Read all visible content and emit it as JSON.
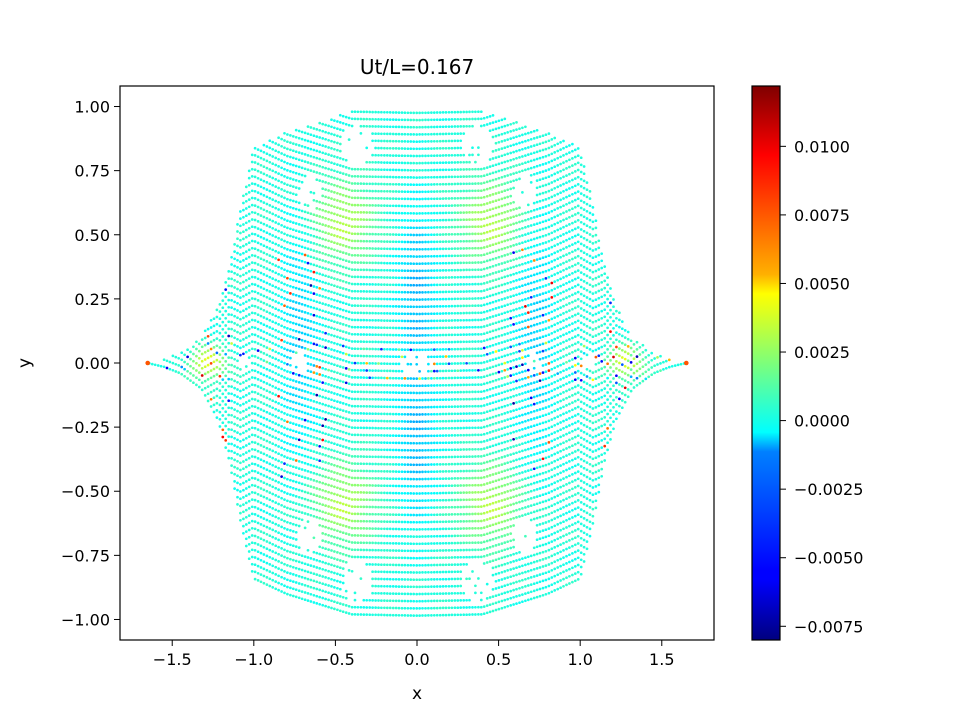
{
  "chart_data": {
    "type": "scatter",
    "title": "Ut/L=0.167",
    "xlabel": "x",
    "ylabel": "y",
    "xlim": [
      -1.82,
      1.82
    ],
    "ylim": [
      -1.08,
      1.08
    ],
    "xticks": [
      -1.5,
      -1.0,
      -0.5,
      0.0,
      0.5,
      1.0,
      1.5
    ],
    "xtick_labels": [
      "−1.5",
      "−1.0",
      "−0.5",
      "0.0",
      "0.5",
      "1.0",
      "1.5"
    ],
    "yticks": [
      1.0,
      0.75,
      0.5,
      0.25,
      0.0,
      -0.25,
      -0.5,
      -0.75,
      -1.0
    ],
    "ytick_labels": [
      "1.00",
      "0.75",
      "0.50",
      "0.25",
      "0.00",
      "−0.25",
      "−0.50",
      "−0.75",
      "−1.00"
    ],
    "grid": false,
    "colormap": "jet",
    "colorbar": {
      "range": [
        -0.008,
        0.0122
      ],
      "ticks": [
        0.01,
        0.0075,
        0.005,
        0.0025,
        0.0,
        -0.0025,
        -0.005,
        -0.0075
      ],
      "tick_labels": [
        "0.0100",
        "0.0075",
        "0.0050",
        "0.0025",
        "0.0000",
        "−0.0025",
        "−0.0050",
        "−0.0075"
      ]
    },
    "region_outline": {
      "upper_right": [
        [
          0.0,
          0.985
        ],
        [
          0.4,
          0.98
        ],
        [
          0.8,
          0.9
        ],
        [
          1.0,
          0.84
        ],
        [
          1.08,
          0.62
        ],
        [
          1.15,
          0.38
        ],
        [
          1.22,
          0.22
        ],
        [
          1.32,
          0.1
        ],
        [
          1.45,
          0.04
        ],
        [
          1.55,
          0.015
        ],
        [
          1.65,
          0.0
        ]
      ]
    },
    "field_features": [
      {
        "x": 0.0,
        "y": 0.3,
        "rx": 0.13,
        "ry": 0.35,
        "value": -0.002
      },
      {
        "x": 0.0,
        "y": -0.3,
        "rx": 0.13,
        "ry": 0.35,
        "value": -0.002
      },
      {
        "x": -0.45,
        "y": 0.55,
        "rx": 0.22,
        "ry": 0.18,
        "value": 0.003
      },
      {
        "x": 0.45,
        "y": 0.55,
        "rx": 0.22,
        "ry": 0.18,
        "value": 0.003
      },
      {
        "x": -0.45,
        "y": -0.55,
        "rx": 0.22,
        "ry": 0.18,
        "value": 0.003
      },
      {
        "x": 0.45,
        "y": -0.55,
        "rx": 0.22,
        "ry": 0.18,
        "value": 0.003
      },
      {
        "x": -0.72,
        "y": 0.1,
        "rx": 0.12,
        "ry": 0.55,
        "value": -0.0015
      },
      {
        "x": 0.72,
        "y": 0.1,
        "rx": 0.12,
        "ry": 0.55,
        "value": -0.0015
      },
      {
        "x": -1.28,
        "y": 0.0,
        "rx": 0.12,
        "ry": 0.07,
        "value": 0.004
      },
      {
        "x": 1.28,
        "y": 0.0,
        "rx": 0.12,
        "ry": 0.07,
        "value": 0.004
      }
    ],
    "gaps": [
      {
        "x": -0.37,
        "y": 0.85,
        "rx": 0.1,
        "ry": 0.08
      },
      {
        "x": 0.37,
        "y": 0.85,
        "rx": 0.1,
        "ry": 0.08
      },
      {
        "x": -0.37,
        "y": -0.85,
        "rx": 0.1,
        "ry": 0.08
      },
      {
        "x": 0.37,
        "y": -0.85,
        "rx": 0.1,
        "ry": 0.08
      },
      {
        "x": -0.66,
        "y": 0.67,
        "rx": 0.07,
        "ry": 0.07
      },
      {
        "x": 0.66,
        "y": 0.67,
        "rx": 0.07,
        "ry": 0.07
      },
      {
        "x": -0.66,
        "y": -0.67,
        "rx": 0.07,
        "ry": 0.07
      },
      {
        "x": 0.66,
        "y": -0.67,
        "rx": 0.07,
        "ry": 0.07
      },
      {
        "x": 0.0,
        "y": 0.0,
        "rx": 0.1,
        "ry": 0.05
      },
      {
        "x": -0.72,
        "y": 0.0,
        "rx": 0.05,
        "ry": 0.04
      },
      {
        "x": 0.72,
        "y": 0.0,
        "rx": 0.05,
        "ry": 0.04
      },
      {
        "x": -1.05,
        "y": 0.0,
        "rx": 0.04,
        "ry": 0.03
      },
      {
        "x": 1.05,
        "y": 0.0,
        "rx": 0.04,
        "ry": 0.03
      }
    ],
    "isolated_points": [
      {
        "x": -1.65,
        "y": 0.0,
        "value": 0.008
      },
      {
        "x": 1.65,
        "y": 0.0,
        "value": 0.008
      }
    ]
  }
}
